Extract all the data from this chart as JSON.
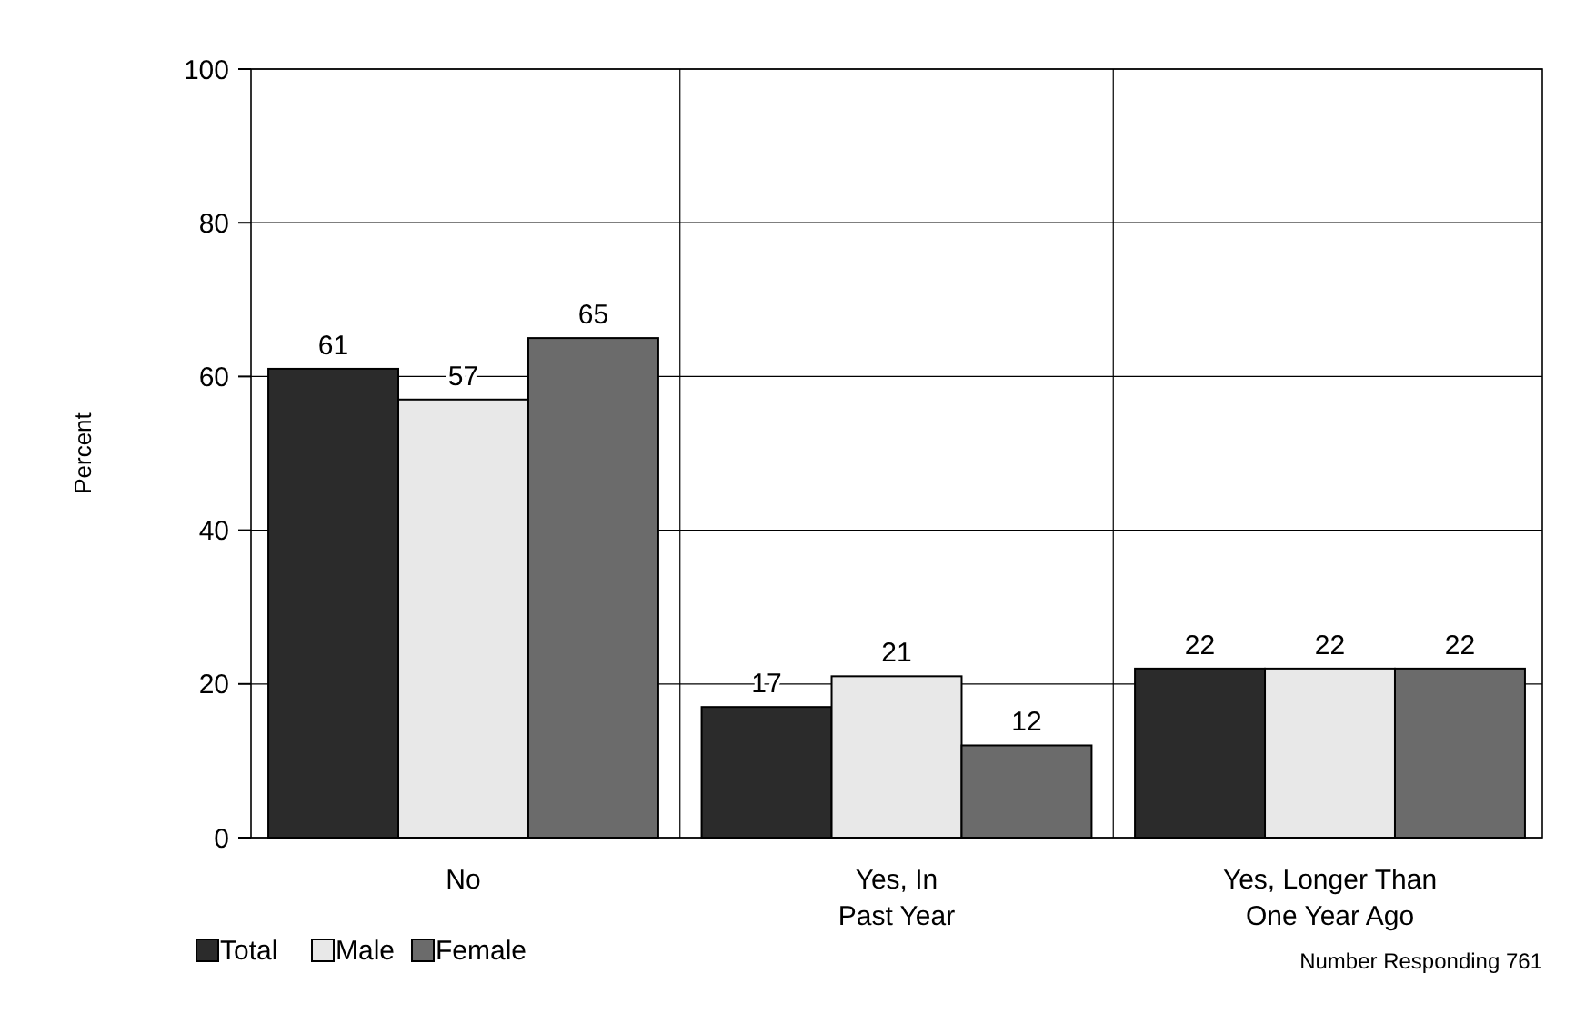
{
  "chart_data": {
    "type": "bar",
    "ylabel": "Percent",
    "categories": [
      "No",
      "Yes, In\nPast Year",
      "Yes, Longer Than\nOne Year Ago"
    ],
    "series": [
      {
        "name": "Total",
        "color": "#2b2b2b",
        "values": [
          61,
          17,
          22
        ]
      },
      {
        "name": "Male",
        "color": "#e8e8e8",
        "values": [
          57,
          21,
          22
        ]
      },
      {
        "name": "Female",
        "color": "#6b6b6b",
        "values": [
          65,
          12,
          22
        ]
      }
    ],
    "ylim": [
      0,
      100
    ],
    "yticks": [
      0,
      20,
      40,
      60,
      80,
      100
    ],
    "grid": true,
    "data_labels": true,
    "legend": "bottom left",
    "annotations": [
      "Number Responding 761"
    ]
  }
}
